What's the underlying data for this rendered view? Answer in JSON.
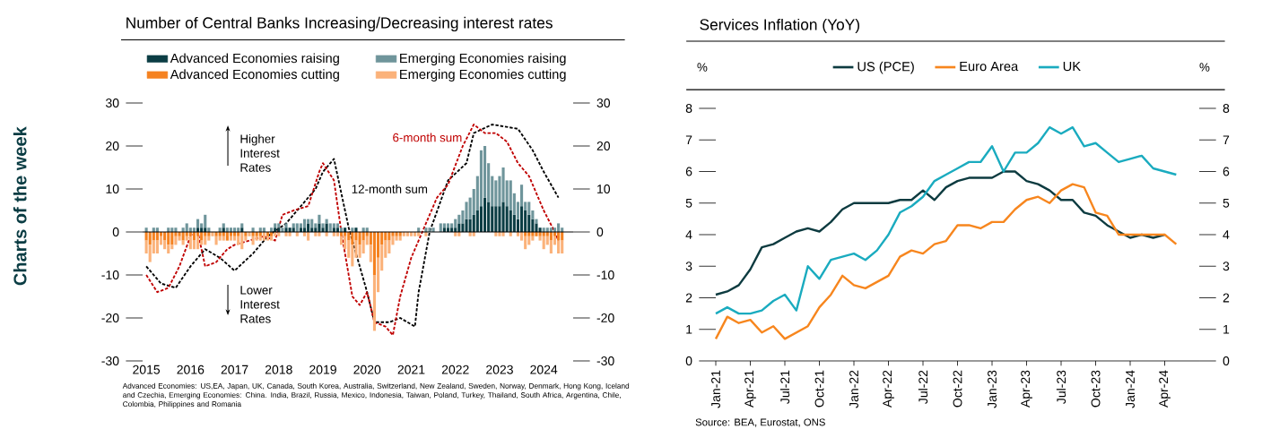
{
  "chart_data": [
    {
      "type": "bar",
      "stacked": true,
      "title": "Number of Central Banks Increasing/Decreasing interest rates",
      "legend": "top",
      "x": [
        "2015-01",
        "2015-02",
        "2015-03",
        "2015-04",
        "2015-05",
        "2015-06",
        "2015-07",
        "2015-08",
        "2015-09",
        "2015-10",
        "2015-11",
        "2015-12",
        "2016-01",
        "2016-02",
        "2016-03",
        "2016-04",
        "2016-05",
        "2016-06",
        "2016-07",
        "2016-08",
        "2016-09",
        "2016-10",
        "2016-11",
        "2016-12",
        "2017-01",
        "2017-02",
        "2017-03",
        "2017-04",
        "2017-05",
        "2017-06",
        "2017-07",
        "2017-08",
        "2017-09",
        "2017-10",
        "2017-11",
        "2017-12",
        "2018-01",
        "2018-02",
        "2018-03",
        "2018-04",
        "2018-05",
        "2018-06",
        "2018-07",
        "2018-08",
        "2018-09",
        "2018-10",
        "2018-11",
        "2018-12",
        "2019-01",
        "2019-02",
        "2019-03",
        "2019-04",
        "2019-05",
        "2019-06",
        "2019-07",
        "2019-08",
        "2019-09",
        "2019-10",
        "2019-11",
        "2019-12",
        "2020-01",
        "2020-02",
        "2020-03",
        "2020-04",
        "2020-05",
        "2020-06",
        "2020-07",
        "2020-08",
        "2020-09",
        "2020-10",
        "2020-11",
        "2020-12",
        "2021-01",
        "2021-02",
        "2021-03",
        "2021-04",
        "2021-05",
        "2021-06",
        "2021-07",
        "2021-08",
        "2021-09",
        "2021-10",
        "2021-11",
        "2021-12",
        "2022-01",
        "2022-02",
        "2022-03",
        "2022-04",
        "2022-05",
        "2022-06",
        "2022-07",
        "2022-08",
        "2022-09",
        "2022-10",
        "2022-11",
        "2022-12",
        "2023-01",
        "2023-02",
        "2023-03",
        "2023-04",
        "2023-05",
        "2023-06",
        "2023-07",
        "2023-08",
        "2023-09",
        "2023-10",
        "2023-11",
        "2023-12",
        "2024-01",
        "2024-02",
        "2024-03",
        "2024-04",
        "2024-05",
        "2024-06"
      ],
      "xlim": [
        "2014-12",
        "2024-09"
      ],
      "xticks": [
        "2015",
        "2016",
        "2017",
        "2018",
        "2019",
        "2020",
        "2021",
        "2022",
        "2023",
        "2024"
      ],
      "ylim": [
        -30,
        30
      ],
      "yticks": [
        -30,
        -20,
        -10,
        0,
        10,
        20,
        30
      ],
      "y2lim": [
        -30,
        30
      ],
      "y2ticks": [
        -30,
        -20,
        -10,
        0,
        10,
        20,
        30
      ],
      "series": [
        {
          "name": "Advanced Economies raising",
          "color": "#0b3d44",
          "values": [
            0,
            0,
            0,
            0,
            0,
            0,
            0,
            0,
            0,
            0,
            0,
            0,
            0,
            0,
            1,
            1,
            1,
            0,
            0,
            0,
            0,
            1,
            0,
            0,
            0,
            0,
            1,
            0,
            0,
            0,
            0,
            0,
            0,
            0,
            0,
            1,
            1,
            0,
            1,
            1,
            1,
            0,
            1,
            1,
            2,
            1,
            1,
            2,
            1,
            2,
            0,
            1,
            1,
            0,
            1,
            0,
            0,
            1,
            0,
            0,
            0,
            0,
            0,
            0,
            0,
            0,
            0,
            0,
            0,
            0,
            0,
            0,
            0,
            0,
            0,
            0,
            0,
            0,
            0,
            0,
            0,
            1,
            1,
            1,
            1,
            2,
            2,
            3,
            3,
            4,
            5,
            6,
            8,
            7,
            6,
            6,
            6,
            7,
            6,
            5,
            4,
            3,
            6,
            5,
            4,
            3,
            2,
            1,
            0,
            0,
            0,
            0,
            0,
            0
          ]
        },
        {
          "name": "Emerging Economies raising",
          "color": "#6f959b",
          "values": [
            1,
            0,
            1,
            1,
            0,
            0,
            1,
            1,
            1,
            0,
            1,
            2,
            1,
            1,
            2,
            1,
            3,
            1,
            0,
            0,
            1,
            1,
            1,
            1,
            1,
            1,
            1,
            0,
            0,
            1,
            0,
            1,
            1,
            0,
            1,
            1,
            1,
            1,
            1,
            0,
            1,
            2,
            1,
            2,
            1,
            2,
            1,
            2,
            1,
            1,
            2,
            1,
            1,
            1,
            0,
            0,
            1,
            0,
            0,
            1,
            1,
            0,
            0,
            0,
            0,
            0,
            0,
            0,
            0,
            0,
            0,
            0,
            0,
            0,
            1,
            0,
            1,
            1,
            1,
            0,
            2,
            1,
            1,
            1,
            2,
            2,
            3,
            4,
            5,
            6,
            8,
            13,
            12,
            9,
            7,
            6,
            7,
            8,
            6,
            7,
            5,
            4,
            5,
            2,
            3,
            2,
            1,
            0,
            1,
            1,
            1,
            1,
            2,
            1
          ]
        },
        {
          "name": "Advanced Economies cutting",
          "color": "#f58220",
          "values": [
            -2,
            -3,
            -2,
            -2,
            -1,
            -2,
            -3,
            -3,
            -1,
            -1,
            -2,
            -1,
            -1,
            -2,
            -1,
            -2,
            -1,
            -1,
            0,
            -1,
            -1,
            -1,
            -2,
            -1,
            -1,
            -1,
            0,
            -1,
            0,
            -1,
            -1,
            -1,
            0,
            -1,
            -1,
            0,
            0,
            0,
            0,
            0,
            0,
            0,
            0,
            0,
            0,
            0,
            0,
            0,
            0,
            0,
            0,
            0,
            0,
            -1,
            -1,
            -2,
            -3,
            -2,
            -3,
            -2,
            -1,
            -3,
            -10,
            -6,
            -3,
            -2,
            -2,
            -1,
            -1,
            -1,
            0,
            0,
            0,
            0,
            0,
            0,
            0,
            0,
            0,
            0,
            0,
            0,
            0,
            0,
            0,
            0,
            0,
            0,
            0,
            0,
            0,
            0,
            0,
            0,
            0,
            0,
            0,
            0,
            0,
            0,
            0,
            0,
            0,
            -1,
            -1,
            -1,
            -1,
            -1,
            -1,
            -1,
            -2,
            -1,
            -2,
            -2
          ]
        },
        {
          "name": "Emerging Economies cutting",
          "color": "#fbb27a",
          "values": [
            -3,
            -4,
            -3,
            -3,
            -2,
            -2,
            -2,
            -1,
            -2,
            -1,
            -1,
            -1,
            -3,
            -2,
            -3,
            -1,
            -2,
            -1,
            -1,
            -2,
            -1,
            -1,
            0,
            -1,
            -1,
            -2,
            -4,
            -1,
            -1,
            -2,
            -1,
            -1,
            -2,
            -1,
            -1,
            -1,
            -1,
            0,
            -1,
            -1,
            0,
            -1,
            0,
            -1,
            -2,
            0,
            -1,
            -1,
            0,
            -1,
            0,
            -1,
            -1,
            -2,
            -3,
            -4,
            -5,
            -4,
            -3,
            -3,
            -2,
            -4,
            -13,
            -8,
            -6,
            -4,
            -3,
            -2,
            -1,
            -1,
            -1,
            -1,
            -1,
            -1,
            -1,
            0,
            -1,
            0,
            0,
            0,
            0,
            0,
            0,
            0,
            -1,
            -1,
            0,
            0,
            -1,
            -1,
            0,
            0,
            0,
            0,
            0,
            -1,
            -1,
            -1,
            0,
            -1,
            0,
            -1,
            -2,
            -3,
            -2,
            -1,
            0,
            -1,
            -3,
            -2,
            -3,
            -2,
            -3,
            -3
          ]
        },
        {
          "type": "line",
          "line_style": "dashed",
          "color": "#000000",
          "x": [
            "2015-01",
            "2015-05",
            "2015-09",
            "2016-01",
            "2016-05",
            "2016-09",
            "2017-01",
            "2017-06",
            "2017-10",
            "2018-03",
            "2018-07",
            "2018-11",
            "2019-01",
            "2019-04",
            "2019-08",
            "2020-01",
            "2020-03",
            "2020-07",
            "2020-10",
            "2021-02",
            "2021-03",
            "2021-06",
            "2021-11",
            "2022-04",
            "2022-06",
            "2022-11",
            "2023-06",
            "2023-10",
            "2024-01",
            "2024-05"
          ],
          "values": [
            -8,
            -12,
            -13,
            -8,
            -4,
            -6,
            -9,
            -5,
            -1,
            2,
            6,
            10,
            14,
            17,
            1,
            -14,
            -21,
            -21,
            -20,
            -22,
            -14,
            0,
            12,
            16,
            23,
            25,
            24,
            19,
            14,
            8
          ]
        },
        {
          "type": "line",
          "line_style": "dashed",
          "color": "#c00000",
          "x": [
            "2015-01",
            "2015-04",
            "2015-07",
            "2015-10",
            "2016-01",
            "2016-03",
            "2016-05",
            "2016-08",
            "2016-11",
            "2017-01",
            "2017-05",
            "2017-09",
            "2017-12",
            "2018-02",
            "2018-05",
            "2018-09",
            "2018-12",
            "2019-01",
            "2019-04",
            "2019-06",
            "2019-09",
            "2019-11",
            "2020-01",
            "2020-03",
            "2020-06",
            "2020-08",
            "2020-10",
            "2021-01",
            "2021-04",
            "2021-08",
            "2021-11",
            "2022-03",
            "2022-06",
            "2022-09",
            "2022-12",
            "2023-03",
            "2023-06",
            "2023-09",
            "2024-01",
            "2024-04",
            "2024-05"
          ],
          "values": [
            -10,
            -14,
            -13,
            -8,
            -1,
            0,
            -8,
            -7,
            -4,
            -3,
            -2,
            -1,
            -2,
            4,
            5,
            6,
            14,
            16,
            12,
            0,
            -15,
            -17,
            -14,
            -21,
            -22,
            -24,
            -15,
            -6,
            0,
            8,
            11,
            20,
            25,
            23,
            23,
            21,
            16,
            13,
            5,
            0,
            -2
          ]
        }
      ],
      "annotations": [
        "Higher Interest Rates",
        "Lower Interest Rates",
        "12-month sum",
        {
          "text": "6-month sum",
          "x": "2022-04",
          "y": 22
        },
        "Advanced Economies: US,EA, Japan, UK, Canada, South Korea, Australia, Switzerland, New Zealand, Sweden, Norway, Denmark, Hong Kong, Iceland and Czechia, Emerging Economies: China. India, Brazil, Russia, Mexico, Indonesia, Taiwan, Poland, Turkey, Thailand, South Africa, Argentina, Chile, Colombia, Philippines and Romania",
        "Charts of the week"
      ]
    },
    {
      "type": "line",
      "title": "Services Inflation (YoY)",
      "ylabel": "%",
      "y2label": "%",
      "legend": "top",
      "x": [
        "2021-01",
        "2021-02",
        "2021-03",
        "2021-04",
        "2021-05",
        "2021-06",
        "2021-07",
        "2021-08",
        "2021-09",
        "2021-10",
        "2021-11",
        "2021-12",
        "2022-01",
        "2022-02",
        "2022-03",
        "2022-04",
        "2022-05",
        "2022-06",
        "2022-07",
        "2022-08",
        "2022-09",
        "2022-10",
        "2022-11",
        "2022-12",
        "2023-01",
        "2023-02",
        "2023-03",
        "2023-04",
        "2023-05",
        "2023-06",
        "2023-07",
        "2023-08",
        "2023-09",
        "2023-10",
        "2023-11",
        "2023-12",
        "2024-01",
        "2024-02",
        "2024-03",
        "2024-04",
        "2024-05"
      ],
      "xlim": [
        "2021-01",
        "2024-07"
      ],
      "xticks": [
        {
          "value": "2021-01",
          "label": "Jan-21"
        },
        {
          "value": "2021-04",
          "label": "Apr-21"
        },
        {
          "value": "2021-07",
          "label": "Jul-21"
        },
        {
          "value": "2021-10",
          "label": "Oct-21"
        },
        {
          "value": "2022-01",
          "label": "Jan-22"
        },
        {
          "value": "2022-04",
          "label": "Apr-22"
        },
        {
          "value": "2022-07",
          "label": "Jul-22"
        },
        {
          "value": "2022-10",
          "label": "Oct-22"
        },
        {
          "value": "2023-01",
          "label": "Jan-23"
        },
        {
          "value": "2023-04",
          "label": "Apr-23"
        },
        {
          "value": "2023-07",
          "label": "Jul-23"
        },
        {
          "value": "2023-10",
          "label": "Oct-23"
        },
        {
          "value": "2024-01",
          "label": "Jan-24"
        },
        {
          "value": "2024-04",
          "label": "Apr-24"
        }
      ],
      "ylim": [
        0,
        8
      ],
      "yticks": [
        0,
        1,
        2,
        3,
        4,
        5,
        6,
        7,
        8
      ],
      "y2lim": [
        0,
        8
      ],
      "y2ticks": [
        0,
        1,
        2,
        3,
        4,
        5,
        6,
        7,
        8
      ],
      "series": [
        {
          "name": "US (PCE)",
          "color": "#0d3b40",
          "values": [
            2.1,
            2.2,
            2.4,
            2.9,
            3.6,
            3.7,
            3.9,
            4.1,
            4.2,
            4.1,
            4.4,
            4.8,
            5.0,
            5.0,
            5.0,
            5.0,
            5.1,
            5.1,
            5.4,
            5.1,
            5.5,
            5.7,
            5.8,
            5.8,
            5.8,
            6.0,
            6.0,
            5.7,
            5.6,
            5.4,
            5.1,
            5.1,
            4.7,
            4.6,
            4.3,
            4.1,
            3.9,
            4.0,
            3.9,
            4.0,
            null
          ]
        },
        {
          "name": "Euro Area",
          "color": "#f7861e",
          "values": [
            0.7,
            1.4,
            1.2,
            1.3,
            0.9,
            1.1,
            0.7,
            0.9,
            1.1,
            1.7,
            2.1,
            2.7,
            2.4,
            2.3,
            2.5,
            2.7,
            3.3,
            3.5,
            3.4,
            3.7,
            3.8,
            4.3,
            4.3,
            4.2,
            4.4,
            4.4,
            4.8,
            5.1,
            5.2,
            5.0,
            5.4,
            5.6,
            5.5,
            4.7,
            4.6,
            4.0,
            4.0,
            4.0,
            4.0,
            4.0,
            3.7
          ]
        },
        {
          "name": "UK",
          "color": "#1aabbf",
          "values": [
            1.5,
            1.7,
            1.5,
            1.5,
            1.6,
            1.9,
            2.1,
            1.6,
            3.0,
            2.6,
            3.2,
            3.3,
            3.4,
            3.2,
            3.5,
            4.0,
            4.7,
            4.9,
            5.2,
            5.7,
            5.9,
            6.1,
            6.3,
            6.3,
            6.8,
            6.0,
            6.6,
            6.6,
            6.9,
            7.4,
            7.2,
            7.4,
            6.8,
            6.9,
            6.6,
            6.3,
            6.4,
            6.5,
            6.1,
            6.0,
            5.9
          ]
        }
      ],
      "annotations": [
        "Source: BEA, Eurostat, ONS"
      ]
    }
  ]
}
